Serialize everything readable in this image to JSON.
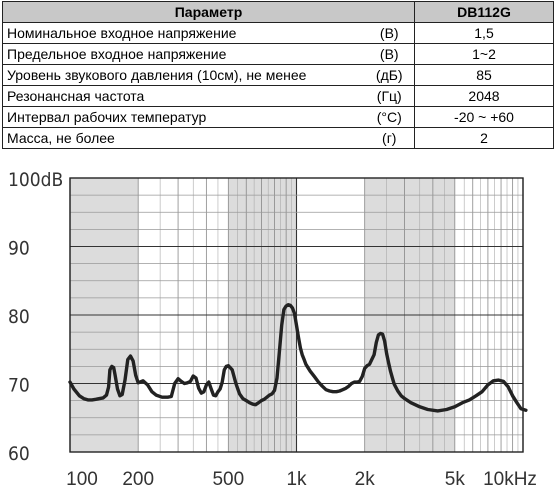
{
  "table": {
    "header": {
      "param": "Параметр",
      "model": "DB112G"
    },
    "rows": [
      {
        "name": "Номинальное входное напряжение",
        "unit": "(В)",
        "value": "1,5"
      },
      {
        "name": "Предельное входное напряжение",
        "unit": "(В)",
        "value": "1~2"
      },
      {
        "name": "Уровень звукового давления (10см), не менее",
        "unit": "(дБ)",
        "value": "85"
      },
      {
        "name": "Резонансная частота",
        "unit": "(Гц)",
        "value": "2048"
      },
      {
        "name": "Интервал рабочих температур",
        "unit": "(°С)",
        "value": "-20 ~ +60"
      },
      {
        "name": "Масса, не более",
        "unit": "(г)",
        "value": "2"
      }
    ]
  },
  "chart_data": {
    "type": "line",
    "xscale": "log",
    "xlim": [
      100,
      10000
    ],
    "ylim": [
      60,
      100
    ],
    "grid": true,
    "xticks": [
      {
        "value": 100,
        "label": "100"
      },
      {
        "value": 200,
        "label": "200"
      },
      {
        "value": 500,
        "label": "500"
      },
      {
        "value": 1000,
        "label": "1k"
      },
      {
        "value": 2000,
        "label": "2k"
      },
      {
        "value": 5000,
        "label": "5k"
      },
      {
        "value": 10000,
        "label": "10kHz"
      }
    ],
    "yticks": [
      {
        "value": 100,
        "label": "100dB"
      },
      {
        "value": 90,
        "label": "90"
      },
      {
        "value": 80,
        "label": "80"
      },
      {
        "value": 70,
        "label": "70"
      },
      {
        "value": 60,
        "label": "60"
      }
    ],
    "series": [
      {
        "x": [
          100,
          104,
          110,
          115,
          120,
          125,
          130,
          135,
          140,
          145,
          148,
          150,
          153,
          156,
          158,
          162,
          166,
          170,
          175,
          180,
          185,
          190,
          195,
          200,
          210,
          220,
          230,
          240,
          255,
          265,
          270,
          280,
          290,
          300,
          310,
          320,
          330,
          340,
          350,
          360,
          370,
          380,
          390,
          400,
          410,
          420,
          430,
          440,
          450,
          460,
          470,
          480,
          490,
          500,
          520,
          540,
          560,
          580,
          600,
          620,
          640,
          660,
          680,
          700,
          720,
          740,
          760,
          780,
          800,
          820,
          840,
          860,
          880,
          900,
          920,
          940,
          960,
          980,
          1000,
          1020,
          1040,
          1060,
          1080,
          1100,
          1150,
          1200,
          1250,
          1300,
          1350,
          1400,
          1450,
          1500,
          1550,
          1600,
          1650,
          1700,
          1750,
          1800,
          1850,
          1900,
          1950,
          2000,
          2050,
          2100,
          2150,
          2200,
          2250,
          2300,
          2350,
          2400,
          2450,
          2500,
          2550,
          2600,
          2650,
          2700,
          2800,
          2900,
          3000,
          3200,
          3500,
          3800,
          4200,
          4600,
          5000,
          5400,
          5800,
          6200,
          6600,
          7000,
          7400,
          7800,
          8200,
          8600,
          9000,
          9400,
          9800,
          10300
        ],
        "y": [
          70.2,
          69.2,
          68.2,
          67.8,
          67.6,
          67.6,
          67.7,
          67.8,
          67.9,
          68.3,
          69.5,
          72.0,
          72.5,
          72.3,
          71.3,
          69.2,
          68.2,
          68.4,
          70.5,
          73.5,
          74.0,
          73.3,
          71.2,
          70.1,
          70.4,
          69.8,
          68.8,
          68.3,
          68.0,
          68.0,
          68.0,
          68.1,
          70.0,
          70.7,
          70.3,
          70.0,
          70.1,
          70.3,
          71.1,
          70.8,
          69.3,
          68.6,
          68.8,
          69.8,
          70.2,
          69.2,
          68.3,
          68.2,
          68.8,
          69.2,
          70.2,
          72.0,
          72.5,
          72.6,
          72.0,
          70.0,
          68.5,
          67.8,
          67.5,
          67.2,
          67.0,
          66.9,
          67.2,
          67.5,
          67.7,
          68.0,
          68.3,
          68.5,
          69.0,
          70.8,
          74.5,
          78.5,
          80.8,
          81.3,
          81.5,
          81.4,
          81.0,
          80.2,
          78.5,
          76.8,
          75.2,
          74.2,
          73.5,
          72.8,
          71.8,
          71.0,
          70.2,
          69.6,
          69.1,
          68.9,
          68.8,
          68.8,
          68.9,
          69.1,
          69.3,
          69.6,
          70.0,
          70.2,
          70.2,
          70.3,
          71.0,
          72.2,
          72.6,
          72.8,
          73.5,
          74.2,
          76.0,
          77.1,
          77.3,
          77.2,
          76.2,
          74.4,
          73.0,
          71.8,
          70.8,
          69.9,
          68.9,
          68.2,
          67.8,
          67.2,
          66.6,
          66.2,
          66.0,
          66.2,
          66.6,
          67.2,
          67.6,
          68.2,
          68.8,
          69.8,
          70.4,
          70.5,
          70.3,
          69.5,
          68.2,
          67.2,
          66.3,
          66.1
        ]
      }
    ]
  }
}
